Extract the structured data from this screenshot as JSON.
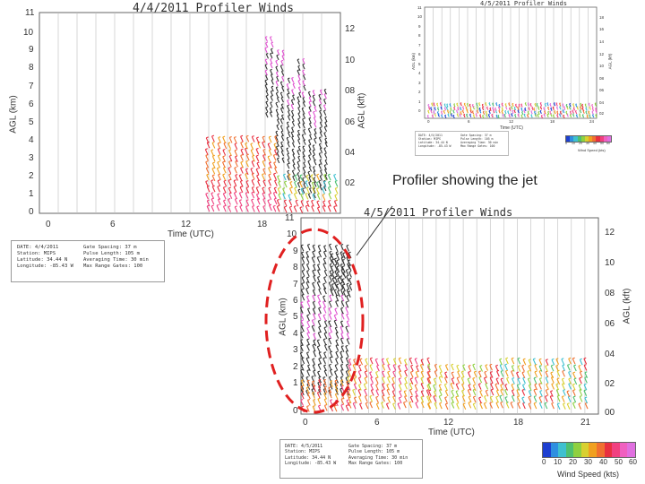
{
  "callout": {
    "text": "Profiler showing the jet"
  },
  "colors": {
    "annotation": "#e02020",
    "grid": "#bdbdbd",
    "frame": "#666666"
  },
  "wind_scale": [
    "#1e3fd0",
    "#2f8fe0",
    "#3fc0d0",
    "#4fc070",
    "#8fd040",
    "#d8d030",
    "#f0a020",
    "#f07030",
    "#e83040",
    "#f04080",
    "#f060c0",
    "#e070e0"
  ],
  "chart_data": [
    {
      "type": "wind-profiler",
      "title": "4/4/2011 Profiler Winds",
      "xlabel": "Time (UTC)",
      "ylabel_left": "AGL (km)",
      "ylabel_right": "AGL (kft)",
      "x_ticks": [
        "0",
        "6",
        "12",
        "18"
      ],
      "y_ticks_left": [
        "0",
        "1",
        "2",
        "3",
        "4",
        "5",
        "6",
        "7",
        "8",
        "9",
        "10",
        "11"
      ],
      "y_ticks_right": [
        "02",
        "04",
        "06",
        "08",
        "10",
        "12"
      ],
      "info": {
        "left": [
          "DATE: 4/4/2011",
          "Station: MIPS",
          "Latitude: 34.44 N",
          "Longitude: -85.43 W"
        ],
        "right": [
          "Gate Spacing: 37 m",
          "Pulse Length: 105 m",
          "Averaging Time: 30 min",
          "Max Range Gates: 100"
        ]
      }
    },
    {
      "type": "wind-profiler",
      "title": "4/5/2011 Profiler Winds",
      "xlabel": "Time (UTC)",
      "ylabel_left": "AGL (km)",
      "ylabel_right": "AGL (kft)",
      "x_ticks": [
        "0",
        "6",
        "12",
        "18",
        "24"
      ],
      "y_ticks_left": [
        "0",
        "1",
        "2",
        "3",
        "4",
        "5",
        "6",
        "7",
        "8",
        "9",
        "10",
        "11"
      ],
      "y_ticks_right": [
        "02",
        "04",
        "06",
        "08",
        "10",
        "12",
        "14",
        "16",
        "18"
      ],
      "info": {
        "left": [
          "DATE: 4/5/2011",
          "Station: MIPS",
          "Latitude: 34.44 N",
          "Longitude: -85.43 W"
        ],
        "right": [
          "Gate Spacing: 37 m",
          "Pulse Length: 105 m",
          "Averaging Time: 30 min",
          "Max Range Gates: 100"
        ]
      },
      "colorbar_ticks": [
        "0",
        "10",
        "20",
        "30",
        "40",
        "50",
        "60"
      ],
      "colorbar_label": "Wind Speed (kts)"
    },
    {
      "type": "wind-profiler",
      "title": "4/5/2011 Profiler Winds",
      "xlabel": "Time (UTC)",
      "ylabel_left": "AGL (km)",
      "ylabel_right": "AGL (kft)",
      "x_ticks": [
        "0",
        "6",
        "12",
        "18",
        "21"
      ],
      "y_ticks_left": [
        "0",
        "1",
        "2",
        "3",
        "4",
        "5",
        "6",
        "7",
        "8",
        "9",
        "10",
        "11"
      ],
      "y_ticks_right": [
        "00",
        "02",
        "04",
        "06",
        "08",
        "10",
        "12"
      ],
      "info": {
        "left": [
          "DATE: 4/5/2011",
          "Station: MIPS",
          "Latitude: 34.44 N",
          "Longitude: -85.43 W"
        ],
        "right": [
          "Gate Spacing: 37 m",
          "Pulse Length: 105 m",
          "Averaging Time: 30 min",
          "Max Range Gates: 100"
        ]
      },
      "colorbar_ticks": [
        "0",
        "10",
        "20",
        "30",
        "40",
        "50",
        "60"
      ],
      "colorbar_label": "Wind Speed (kts)"
    }
  ]
}
